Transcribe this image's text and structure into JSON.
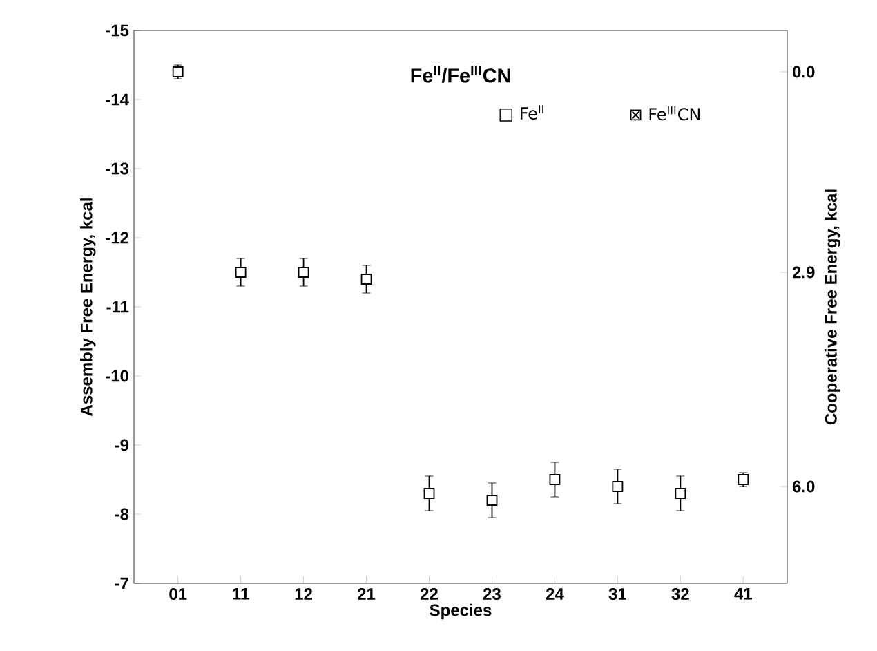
{
  "chart_data": {
    "type": "scatter",
    "title": "Fe$^{II}$/Fe$^{III}$CN",
    "xlabel": "Species",
    "ylabel": "Assembly Free Energy, kcal",
    "y2label": "Cooperative Free Energy, kcal",
    "categories": [
      "01",
      "11",
      "12",
      "21",
      "22",
      "23",
      "24",
      "31",
      "32",
      "41"
    ],
    "series": [
      {
        "color": "#000000",
        "values": [
          -14.4,
          -11.5,
          -11.5,
          -11.4,
          -8.3,
          -8.2,
          -8.5,
          -8.4,
          -8.3,
          -8.5
        ],
        "errors": [
          0.1,
          0.2,
          0.2,
          0.2,
          0.25,
          0.25,
          0.25,
          0.25,
          0.25,
          0.1
        ]
      }
    ],
    "marker": "square",
    "ylim": [
      -7,
      -15
    ],
    "yticks": [
      -15,
      -14,
      -13,
      -12,
      -11,
      -10,
      -9,
      -8,
      -7
    ],
    "y2lim": [
      7.4,
      -0.6
    ],
    "y2ticks": [
      {
        "value": 0,
        "label": "0.0"
      },
      2.9,
      {
        "value": 6,
        "label": "6.0"
      }
    ],
    "annotations": [
      "□ Fe$^{II}$",
      "⊠ Fe$^{III}$CN"
    ]
  }
}
